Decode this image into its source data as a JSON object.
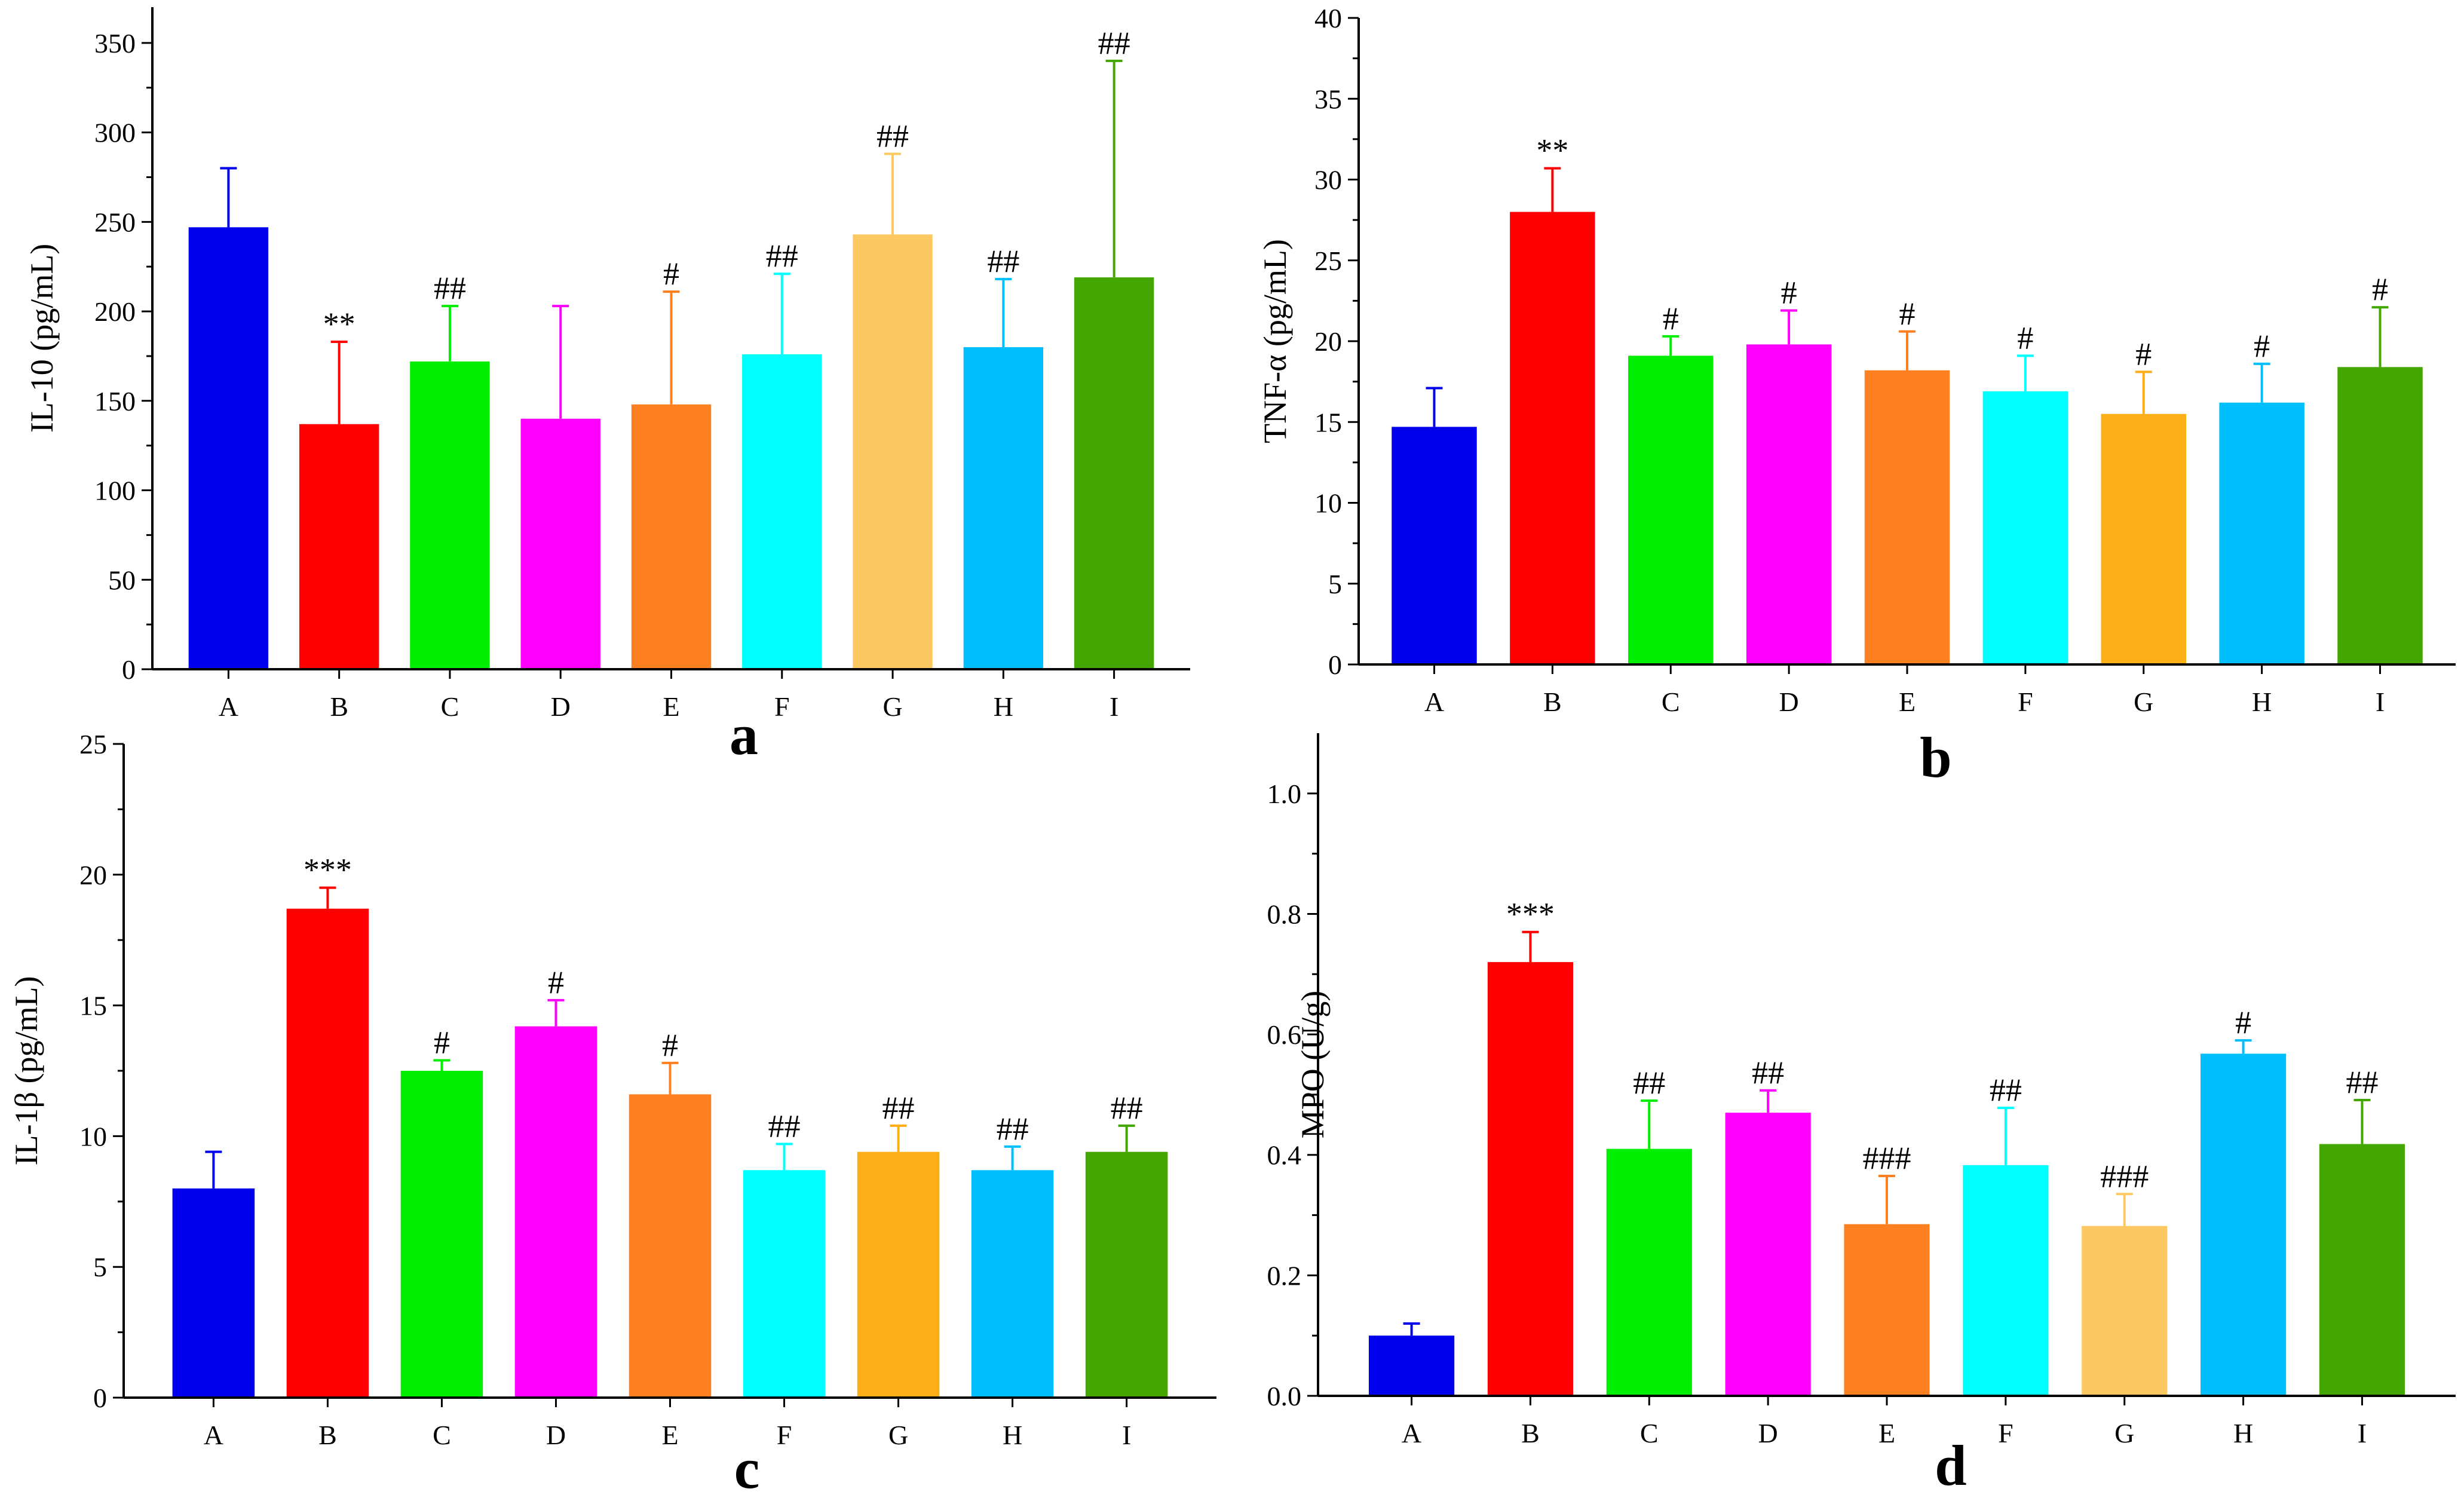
{
  "chart_data": [
    {
      "type": "bar",
      "panel_label": "a",
      "ylabel": "IL-10 (pg/mL)",
      "xlabel": "",
      "ylim": [
        0,
        370
      ],
      "yticks": [
        "0",
        "50",
        "100",
        "150",
        "200",
        "250",
        "300",
        "350"
      ],
      "categories": [
        "A",
        "B",
        "C",
        "D",
        "E",
        "F",
        "G",
        "H",
        "I"
      ],
      "values": [
        247,
        137,
        172,
        140,
        148,
        176,
        243,
        180,
        219
      ],
      "errors": [
        33,
        46,
        31,
        63,
        63,
        45,
        45,
        38,
        121
      ],
      "annotations": [
        "",
        "**",
        "##",
        "",
        "#",
        "##",
        "##",
        "##",
        "##"
      ],
      "colors": [
        "#0000ee",
        "#ff0000",
        "#00ee00",
        "#ff00ff",
        "#ff8020",
        "#00ffff",
        "#fbc862",
        "#00bfff",
        "#44a600"
      ]
    },
    {
      "type": "bar",
      "panel_label": "b",
      "ylabel": "TNF-α (pg/mL)",
      "xlabel": "",
      "ylim": [
        0,
        40
      ],
      "yticks": [
        "0",
        "5",
        "10",
        "15",
        "20",
        "25",
        "30",
        "35",
        "40"
      ],
      "categories": [
        "A",
        "B",
        "C",
        "D",
        "E",
        "F",
        "G",
        "H",
        "I"
      ],
      "values": [
        14.7,
        28.0,
        19.1,
        19.8,
        18.2,
        16.9,
        15.5,
        16.2,
        18.4
      ],
      "errors": [
        2.4,
        2.7,
        1.2,
        2.1,
        2.4,
        2.2,
        2.6,
        2.4,
        3.7
      ],
      "annotations": [
        "",
        "**",
        "#",
        "#",
        "#",
        "#",
        "#",
        "#",
        "#"
      ],
      "colors": [
        "#0000ee",
        "#ff0000",
        "#00ee00",
        "#ff00ff",
        "#ff8020",
        "#00ffff",
        "#fbaf17",
        "#00bfff",
        "#44a600"
      ]
    },
    {
      "type": "bar",
      "panel_label": "c",
      "ylabel": "IL-1β (pg/mL)",
      "xlabel": "",
      "ylim": [
        0,
        25
      ],
      "yticks": [
        "0",
        "5",
        "10",
        "15",
        "20",
        "25"
      ],
      "categories": [
        "A",
        "B",
        "C",
        "D",
        "E",
        "F",
        "G",
        "H",
        "I"
      ],
      "values": [
        8.0,
        18.7,
        12.5,
        14.2,
        11.6,
        8.7,
        9.4,
        8.7,
        9.4
      ],
      "errors": [
        1.4,
        0.8,
        0.4,
        1.0,
        1.2,
        1.0,
        1.0,
        0.9,
        1.0
      ],
      "annotations": [
        "",
        "***",
        "#",
        "#",
        "#",
        "##",
        "##",
        "##",
        "##"
      ],
      "colors": [
        "#0000ee",
        "#ff0000",
        "#00ee00",
        "#ff00ff",
        "#ff8020",
        "#00ffff",
        "#fbaf17",
        "#00bfff",
        "#44a600"
      ]
    },
    {
      "type": "bar",
      "panel_label": "d",
      "ylabel": "MPO (U/g)",
      "xlabel": "",
      "ylim": [
        0,
        1.1
      ],
      "yticks": [
        "0.0",
        "0.2",
        "0.4",
        "0.6",
        "0.8",
        "1.0"
      ],
      "categories": [
        "A",
        "B",
        "C",
        "D",
        "E",
        "F",
        "G",
        "H",
        "I"
      ],
      "values": [
        0.1,
        0.72,
        0.41,
        0.47,
        0.285,
        0.383,
        0.282,
        0.568,
        0.418
      ],
      "errors": [
        0.02,
        0.05,
        0.08,
        0.037,
        0.08,
        0.095,
        0.053,
        0.022,
        0.073
      ],
      "annotations": [
        "",
        "***",
        "##",
        "##",
        "###",
        "##",
        "###",
        "#",
        "##"
      ],
      "colors": [
        "#0000ee",
        "#ff0000",
        "#00ee00",
        "#ff00ff",
        "#ff8020",
        "#00ffff",
        "#fbc862",
        "#00bfff",
        "#44a600"
      ]
    }
  ]
}
